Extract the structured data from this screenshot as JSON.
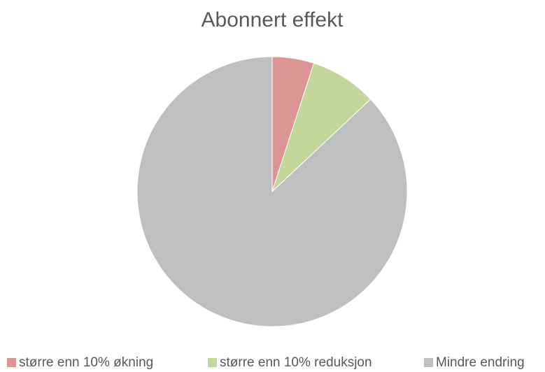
{
  "chart_data": {
    "type": "pie",
    "title": "Abonnert effekt",
    "categories": [
      "større enn 10% økning",
      "større enn 10% reduksjon",
      "Mindre endring"
    ],
    "values": [
      5,
      8,
      87
    ],
    "colors": [
      "#d99694",
      "#c4d79b",
      "#bfbfbf"
    ],
    "legend": "bottom"
  }
}
